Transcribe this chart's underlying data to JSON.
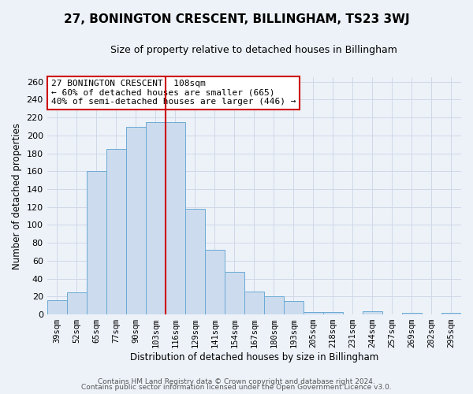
{
  "title": "27, BONINGTON CRESCENT, BILLINGHAM, TS23 3WJ",
  "subtitle": "Size of property relative to detached houses in Billingham",
  "xlabel": "Distribution of detached houses by size in Billingham",
  "ylabel": "Number of detached properties",
  "categories": [
    "39sqm",
    "52sqm",
    "65sqm",
    "77sqm",
    "90sqm",
    "103sqm",
    "116sqm",
    "129sqm",
    "141sqm",
    "154sqm",
    "167sqm",
    "180sqm",
    "193sqm",
    "205sqm",
    "218sqm",
    "231sqm",
    "244sqm",
    "257sqm",
    "269sqm",
    "282sqm",
    "295sqm"
  ],
  "values": [
    16,
    25,
    160,
    185,
    210,
    215,
    215,
    118,
    72,
    48,
    26,
    20,
    15,
    3,
    3,
    0,
    4,
    0,
    2,
    0,
    2
  ],
  "bar_color": "#ccdcee",
  "bar_edge_color": "#6aaad4",
  "vline_x": 6.0,
  "vline_color": "#cc0000",
  "annotation_text": "27 BONINGTON CRESCENT: 108sqm\n← 60% of detached houses are smaller (665)\n40% of semi-detached houses are larger (446) →",
  "annotation_box_color": "#ffffff",
  "annotation_box_edge_color": "#cc0000",
  "ylim": [
    0,
    265
  ],
  "yticks": [
    0,
    20,
    40,
    60,
    80,
    100,
    120,
    140,
    160,
    180,
    200,
    220,
    240,
    260
  ],
  "footer1": "Contains HM Land Registry data © Crown copyright and database right 2024.",
  "footer2": "Contains public sector information licensed under the Open Government Licence v3.0.",
  "background_color": "#edf2f9",
  "grid_color": "#d0d8e8"
}
